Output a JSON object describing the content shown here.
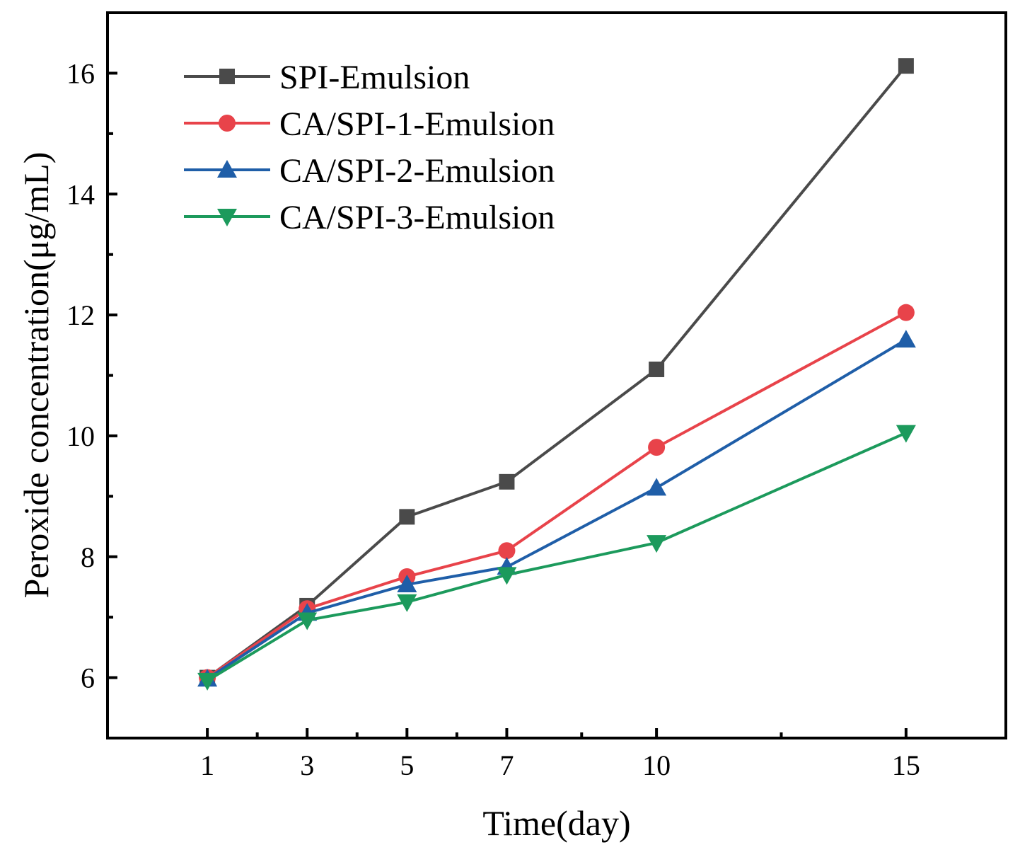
{
  "chart_data": {
    "type": "line",
    "title": "",
    "xlabel": "Time(day)",
    "ylabel": "Peroxide concentration(μg/mL)",
    "xlim": [
      -1,
      17
    ],
    "ylim": [
      5,
      17
    ],
    "x_ticks": [
      1,
      3,
      5,
      7,
      10,
      15
    ],
    "x_tick_labels": [
      "1",
      "3",
      "5",
      "7",
      "10",
      "15"
    ],
    "x_minor_ticks": [
      2,
      4,
      6,
      8.5,
      12.5
    ],
    "y_ticks": [
      6,
      8,
      10,
      12,
      14,
      16
    ],
    "y_tick_labels": [
      "6",
      "8",
      "10",
      "12",
      "14",
      "16"
    ],
    "y_minor_ticks": [
      7,
      9,
      11,
      13,
      15
    ],
    "grid": false,
    "legend_position": "top-left",
    "x": [
      1,
      3,
      5,
      7,
      10,
      15
    ],
    "series": [
      {
        "name": "SPI-Emulsion",
        "color": "#4a4a4a",
        "marker": "square",
        "values": [
          6.0,
          7.19,
          8.66,
          9.24,
          11.1,
          16.12
        ]
      },
      {
        "name": "CA/SPI-1-Emulsion",
        "color": "#e8434a",
        "marker": "circle",
        "values": [
          6.0,
          7.14,
          7.67,
          8.1,
          9.81,
          12.04
        ]
      },
      {
        "name": "CA/SPI-2-Emulsion",
        "color": "#1f5ea8",
        "marker": "triangle-up",
        "values": [
          5.98,
          7.07,
          7.54,
          7.83,
          9.14,
          11.59
        ]
      },
      {
        "name": "CA/SPI-3-Emulsion",
        "color": "#1c9a5c",
        "marker": "triangle-down",
        "values": [
          5.95,
          6.95,
          7.25,
          7.7,
          8.23,
          10.05
        ]
      }
    ]
  }
}
